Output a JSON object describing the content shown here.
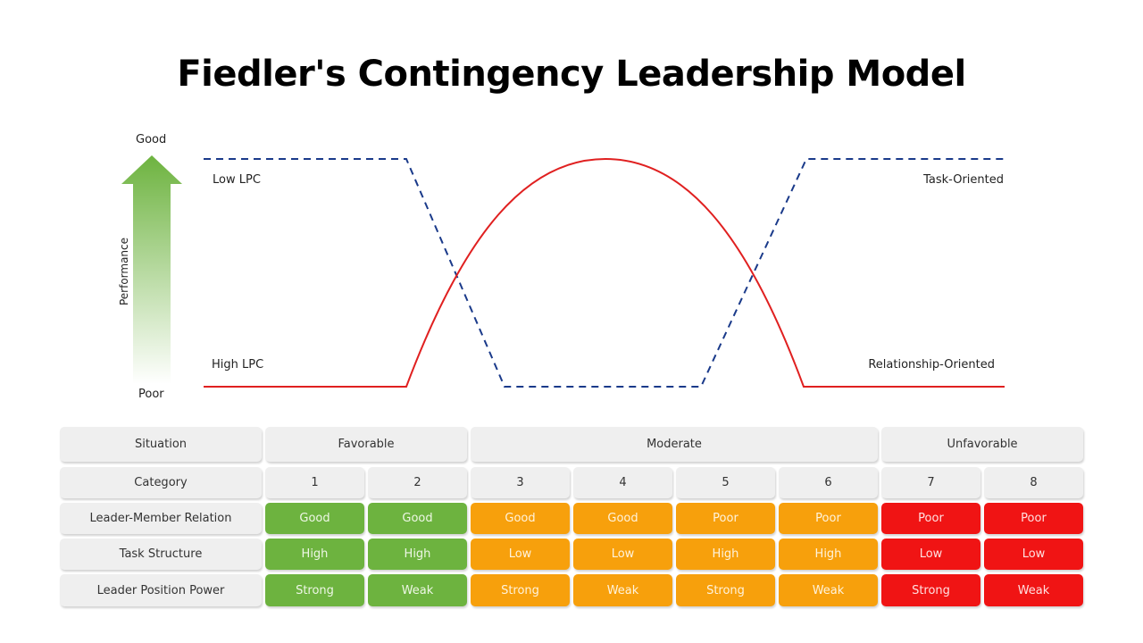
{
  "title": "Fiedler's Contingency Leadership Model",
  "axis": {
    "label": "Performance",
    "top": "Good",
    "bottom": "Poor"
  },
  "curve_labels": {
    "low_lpc": "Low LPC",
    "high_lpc": "High LPC",
    "task": "Task-Oriented",
    "relationship": "Relationship-Oriented"
  },
  "colors": {
    "favorable": "#6db33f",
    "moderate": "#f7a00c",
    "unfavorable": "#f01414",
    "low_lpc_line": "#1a3a8a",
    "high_lpc_line": "#e02020"
  },
  "table": {
    "situation_label": "Situation",
    "situations": [
      {
        "label": "Favorable",
        "span": 2,
        "class": "green"
      },
      {
        "label": "Moderate",
        "span": 4,
        "class": "orange"
      },
      {
        "label": "Unfavorable",
        "span": 2,
        "class": "red"
      }
    ],
    "category_label": "Category",
    "categories": [
      "1",
      "2",
      "3",
      "4",
      "5",
      "6",
      "7",
      "8"
    ],
    "rows": [
      {
        "label": "Leader-Member Relation",
        "values": [
          "Good",
          "Good",
          "Good",
          "Good",
          "Poor",
          "Poor",
          "Poor",
          "Poor"
        ]
      },
      {
        "label": "Task Structure",
        "values": [
          "High",
          "High",
          "Low",
          "Low",
          "High",
          "High",
          "Low",
          "Low"
        ]
      },
      {
        "label": "Leader Position Power",
        "values": [
          "Strong",
          "Weak",
          "Strong",
          "Weak",
          "Strong",
          "Weak",
          "Strong",
          "Weak"
        ]
      }
    ]
  }
}
